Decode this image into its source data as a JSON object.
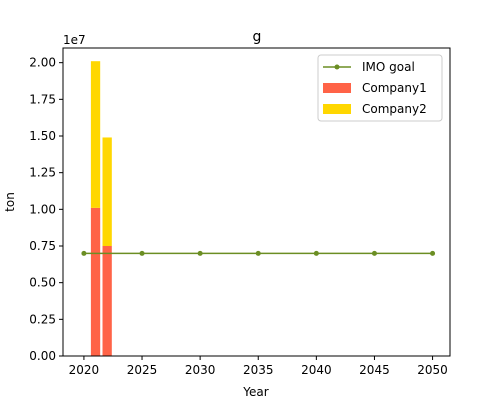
{
  "chart_data": {
    "type": "bar",
    "title": "g",
    "xlabel": "Year",
    "ylabel": "ton",
    "y_offset_text": "1e7",
    "xlim": [
      2018.2,
      2051.5
    ],
    "ylim": [
      0,
      21000000
    ],
    "x_ticks": [
      2020,
      2025,
      2030,
      2035,
      2040,
      2045,
      2050
    ],
    "x_tick_labels": [
      "2020",
      "2025",
      "2030",
      "2035",
      "2040",
      "2045",
      "2050"
    ],
    "y_ticks": [
      0,
      2500000,
      5000000,
      7500000,
      10000000,
      12500000,
      15000000,
      17500000,
      20000000
    ],
    "y_tick_labels": [
      "0.00",
      "0.25",
      "0.50",
      "0.75",
      "1.00",
      "1.25",
      "1.50",
      "1.75",
      "2.00"
    ],
    "stack_categories": [
      2021,
      2022
    ],
    "bar_width_years": 0.8,
    "series": [
      {
        "name": "Company1",
        "kind": "bar",
        "color": "#ff6347",
        "values": [
          10100000,
          7500000
        ]
      },
      {
        "name": "Company2",
        "kind": "bar",
        "color": "#ffd700",
        "values": [
          10000000,
          7400000
        ]
      },
      {
        "name": "IMO goal",
        "kind": "line",
        "color": "#6b8e23",
        "x": [
          2020,
          2025,
          2030,
          2035,
          2040,
          2045,
          2050
        ],
        "values": [
          7000000,
          7000000,
          7000000,
          7000000,
          7000000,
          7000000,
          7000000
        ]
      }
    ],
    "legend": {
      "position": "top-right",
      "entries": [
        "IMO goal",
        "Company1",
        "Company2"
      ]
    },
    "grid": false
  }
}
